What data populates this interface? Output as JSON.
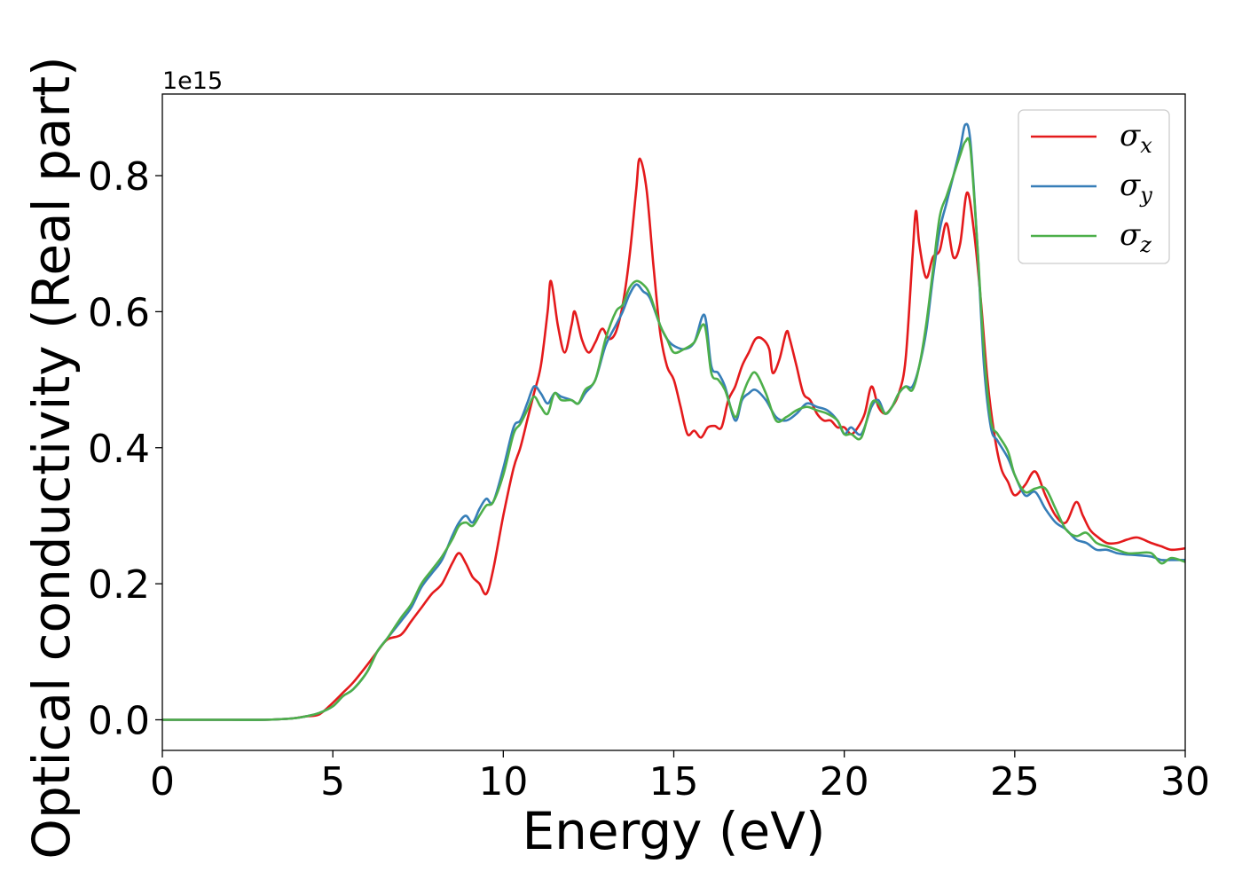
{
  "chart_data": {
    "type": "line",
    "title": "",
    "xlabel": "Energy (eV)",
    "ylabel": "Optical conductivity (Real part)",
    "y_offset_label": "1e15",
    "xlim": [
      0,
      30
    ],
    "ylim": [
      -0.045,
      0.92
    ],
    "xticks": [
      0,
      5,
      10,
      15,
      20,
      25,
      30
    ],
    "xtick_labels": [
      "0",
      "5",
      "10",
      "15",
      "20",
      "25",
      "30"
    ],
    "yticks": [
      0.0,
      0.2,
      0.4,
      0.6,
      0.8
    ],
    "ytick_labels": [
      "0.0",
      "0.2",
      "0.4",
      "0.6",
      "0.8"
    ],
    "grid": false,
    "legend_position": "top-right",
    "series": [
      {
        "name": "σ",
        "subscript": "x",
        "color": "#e41a1c",
        "x": [
          0,
          0.5,
          1,
          2,
          3,
          3.8,
          4.2,
          4.6,
          5,
          5.3,
          5.6,
          6,
          6.3,
          6.6,
          7,
          7.3,
          7.6,
          7.9,
          8.2,
          8.5,
          8.7,
          8.9,
          9.1,
          9.3,
          9.5,
          9.7,
          10,
          10.3,
          10.5,
          10.7,
          10.9,
          11.1,
          11.3,
          11.4,
          11.6,
          11.8,
          12,
          12.1,
          12.3,
          12.5,
          12.7,
          12.9,
          13.1,
          13.3,
          13.5,
          13.7,
          13.9,
          14,
          14.2,
          14.4,
          14.6,
          14.8,
          15,
          15.2,
          15.4,
          15.6,
          15.8,
          16,
          16.2,
          16.4,
          16.6,
          16.8,
          17,
          17.2,
          17.4,
          17.6,
          17.8,
          17.9,
          18.1,
          18.3,
          18.4,
          18.6,
          18.8,
          19,
          19.2,
          19.4,
          19.6,
          19.8,
          20,
          20.2,
          20.4,
          20.6,
          20.8,
          21,
          21.2,
          21.4,
          21.6,
          21.8,
          22,
          22.1,
          22.2,
          22.4,
          22.6,
          22.8,
          23,
          23.2,
          23.4,
          23.6,
          23.8,
          24,
          24.2,
          24.4,
          24.6,
          24.8,
          25,
          25.3,
          25.6,
          25.9,
          26.2,
          26.5,
          26.8,
          27,
          27.2,
          27.4,
          27.7,
          28,
          28.3,
          28.6,
          29,
          29.3,
          29.6,
          30
        ],
        "y": [
          0.0,
          0.0,
          0.0,
          0.0,
          0.0,
          0.002,
          0.005,
          0.008,
          0.025,
          0.04,
          0.055,
          0.08,
          0.1,
          0.118,
          0.125,
          0.145,
          0.165,
          0.185,
          0.2,
          0.23,
          0.245,
          0.23,
          0.21,
          0.2,
          0.185,
          0.22,
          0.3,
          0.37,
          0.4,
          0.44,
          0.48,
          0.52,
          0.6,
          0.645,
          0.58,
          0.54,
          0.58,
          0.6,
          0.56,
          0.54,
          0.555,
          0.575,
          0.56,
          0.57,
          0.61,
          0.68,
          0.78,
          0.825,
          0.78,
          0.67,
          0.57,
          0.52,
          0.5,
          0.46,
          0.42,
          0.425,
          0.415,
          0.43,
          0.432,
          0.43,
          0.47,
          0.49,
          0.52,
          0.54,
          0.56,
          0.56,
          0.545,
          0.51,
          0.53,
          0.57,
          0.56,
          0.52,
          0.48,
          0.47,
          0.45,
          0.44,
          0.44,
          0.43,
          0.43,
          0.42,
          0.43,
          0.45,
          0.49,
          0.46,
          0.45,
          0.46,
          0.48,
          0.53,
          0.68,
          0.748,
          0.7,
          0.65,
          0.68,
          0.69,
          0.73,
          0.68,
          0.7,
          0.775,
          0.72,
          0.62,
          0.5,
          0.42,
          0.37,
          0.35,
          0.33,
          0.345,
          0.365,
          0.33,
          0.3,
          0.29,
          0.32,
          0.3,
          0.28,
          0.27,
          0.26,
          0.26,
          0.265,
          0.268,
          0.26,
          0.255,
          0.25,
          0.252
        ]
      },
      {
        "name": "σ",
        "subscript": "y",
        "color": "#377eb8",
        "x": [
          0,
          0.5,
          1,
          2,
          3,
          3.8,
          4.2,
          4.6,
          5,
          5.3,
          5.6,
          6,
          6.3,
          6.6,
          7,
          7.3,
          7.6,
          7.9,
          8.2,
          8.5,
          8.7,
          8.9,
          9.1,
          9.3,
          9.5,
          9.7,
          10,
          10.3,
          10.5,
          10.7,
          10.9,
          11.1,
          11.3,
          11.5,
          11.7,
          12,
          12.2,
          12.4,
          12.7,
          13,
          13.3,
          13.5,
          13.7,
          13.9,
          14.1,
          14.3,
          14.6,
          14.8,
          15,
          15.3,
          15.6,
          15.9,
          16.1,
          16.3,
          16.5,
          16.8,
          17,
          17.2,
          17.4,
          17.7,
          18,
          18.3,
          18.6,
          18.9,
          19.2,
          19.5,
          19.8,
          20,
          20.2,
          20.5,
          20.8,
          21,
          21.2,
          21.4,
          21.6,
          21.8,
          22,
          22.2,
          22.4,
          22.6,
          22.8,
          23,
          23.2,
          23.4,
          23.55,
          23.7,
          23.9,
          24.1,
          24.3,
          24.5,
          24.8,
          25,
          25.3,
          25.6,
          25.9,
          26.2,
          26.5,
          26.8,
          27.1,
          27.4,
          27.7,
          28,
          28.3,
          28.6,
          29,
          29.3,
          29.6,
          30
        ],
        "y": [
          0.0,
          0.0,
          0.0,
          0.0,
          0.0,
          0.002,
          0.005,
          0.01,
          0.02,
          0.035,
          0.045,
          0.07,
          0.1,
          0.12,
          0.145,
          0.165,
          0.195,
          0.215,
          0.235,
          0.27,
          0.29,
          0.3,
          0.29,
          0.31,
          0.325,
          0.32,
          0.37,
          0.43,
          0.44,
          0.465,
          0.49,
          0.48,
          0.465,
          0.48,
          0.475,
          0.47,
          0.465,
          0.48,
          0.5,
          0.55,
          0.58,
          0.6,
          0.625,
          0.64,
          0.63,
          0.62,
          0.58,
          0.56,
          0.55,
          0.545,
          0.555,
          0.595,
          0.52,
          0.51,
          0.49,
          0.44,
          0.47,
          0.48,
          0.485,
          0.47,
          0.445,
          0.44,
          0.45,
          0.465,
          0.46,
          0.455,
          0.44,
          0.42,
          0.43,
          0.42,
          0.46,
          0.47,
          0.45,
          0.46,
          0.48,
          0.49,
          0.49,
          0.52,
          0.57,
          0.65,
          0.72,
          0.76,
          0.8,
          0.84,
          0.875,
          0.85,
          0.7,
          0.52,
          0.43,
          0.41,
          0.385,
          0.36,
          0.33,
          0.335,
          0.31,
          0.29,
          0.28,
          0.265,
          0.26,
          0.25,
          0.25,
          0.245,
          0.243,
          0.242,
          0.24,
          0.235,
          0.235,
          0.235
        ]
      },
      {
        "name": "σ",
        "subscript": "z",
        "color": "#4daf4a",
        "x": [
          0,
          0.5,
          1,
          2,
          3,
          3.8,
          4.2,
          4.6,
          5,
          5.3,
          5.6,
          6,
          6.3,
          6.6,
          7,
          7.3,
          7.6,
          7.9,
          8.2,
          8.5,
          8.7,
          8.9,
          9.1,
          9.3,
          9.5,
          9.7,
          10,
          10.3,
          10.5,
          10.7,
          10.9,
          11.1,
          11.3,
          11.5,
          11.7,
          12,
          12.2,
          12.4,
          12.7,
          13,
          13.3,
          13.5,
          13.7,
          13.9,
          14.1,
          14.3,
          14.6,
          14.8,
          15,
          15.3,
          15.6,
          15.9,
          16.1,
          16.3,
          16.5,
          16.8,
          17,
          17.2,
          17.4,
          17.7,
          18,
          18.3,
          18.6,
          18.9,
          19.2,
          19.5,
          19.8,
          20,
          20.2,
          20.5,
          20.8,
          21,
          21.2,
          21.4,
          21.6,
          21.8,
          22,
          22.2,
          22.4,
          22.6,
          22.8,
          23,
          23.2,
          23.4,
          23.55,
          23.7,
          23.9,
          24.1,
          24.3,
          24.5,
          24.8,
          25,
          25.3,
          25.6,
          25.9,
          26.2,
          26.5,
          26.8,
          27.1,
          27.4,
          27.7,
          28,
          28.3,
          28.6,
          29,
          29.3,
          29.6,
          30
        ],
        "y": [
          0.0,
          0.0,
          0.0,
          0.0,
          0.0,
          0.002,
          0.005,
          0.01,
          0.02,
          0.035,
          0.045,
          0.07,
          0.1,
          0.12,
          0.15,
          0.17,
          0.2,
          0.22,
          0.24,
          0.265,
          0.285,
          0.29,
          0.285,
          0.3,
          0.315,
          0.32,
          0.36,
          0.42,
          0.435,
          0.455,
          0.475,
          0.46,
          0.45,
          0.48,
          0.47,
          0.47,
          0.465,
          0.485,
          0.5,
          0.56,
          0.6,
          0.61,
          0.635,
          0.645,
          0.64,
          0.625,
          0.58,
          0.56,
          0.54,
          0.545,
          0.555,
          0.58,
          0.51,
          0.5,
          0.485,
          0.445,
          0.475,
          0.5,
          0.51,
          0.48,
          0.44,
          0.445,
          0.455,
          0.46,
          0.455,
          0.45,
          0.44,
          0.42,
          0.42,
          0.415,
          0.465,
          0.465,
          0.45,
          0.46,
          0.48,
          0.49,
          0.485,
          0.52,
          0.58,
          0.66,
          0.74,
          0.77,
          0.8,
          0.83,
          0.85,
          0.84,
          0.7,
          0.54,
          0.44,
          0.42,
          0.395,
          0.36,
          0.335,
          0.34,
          0.34,
          0.31,
          0.28,
          0.27,
          0.275,
          0.26,
          0.255,
          0.25,
          0.245,
          0.245,
          0.245,
          0.23,
          0.238,
          0.232
        ]
      }
    ]
  }
}
